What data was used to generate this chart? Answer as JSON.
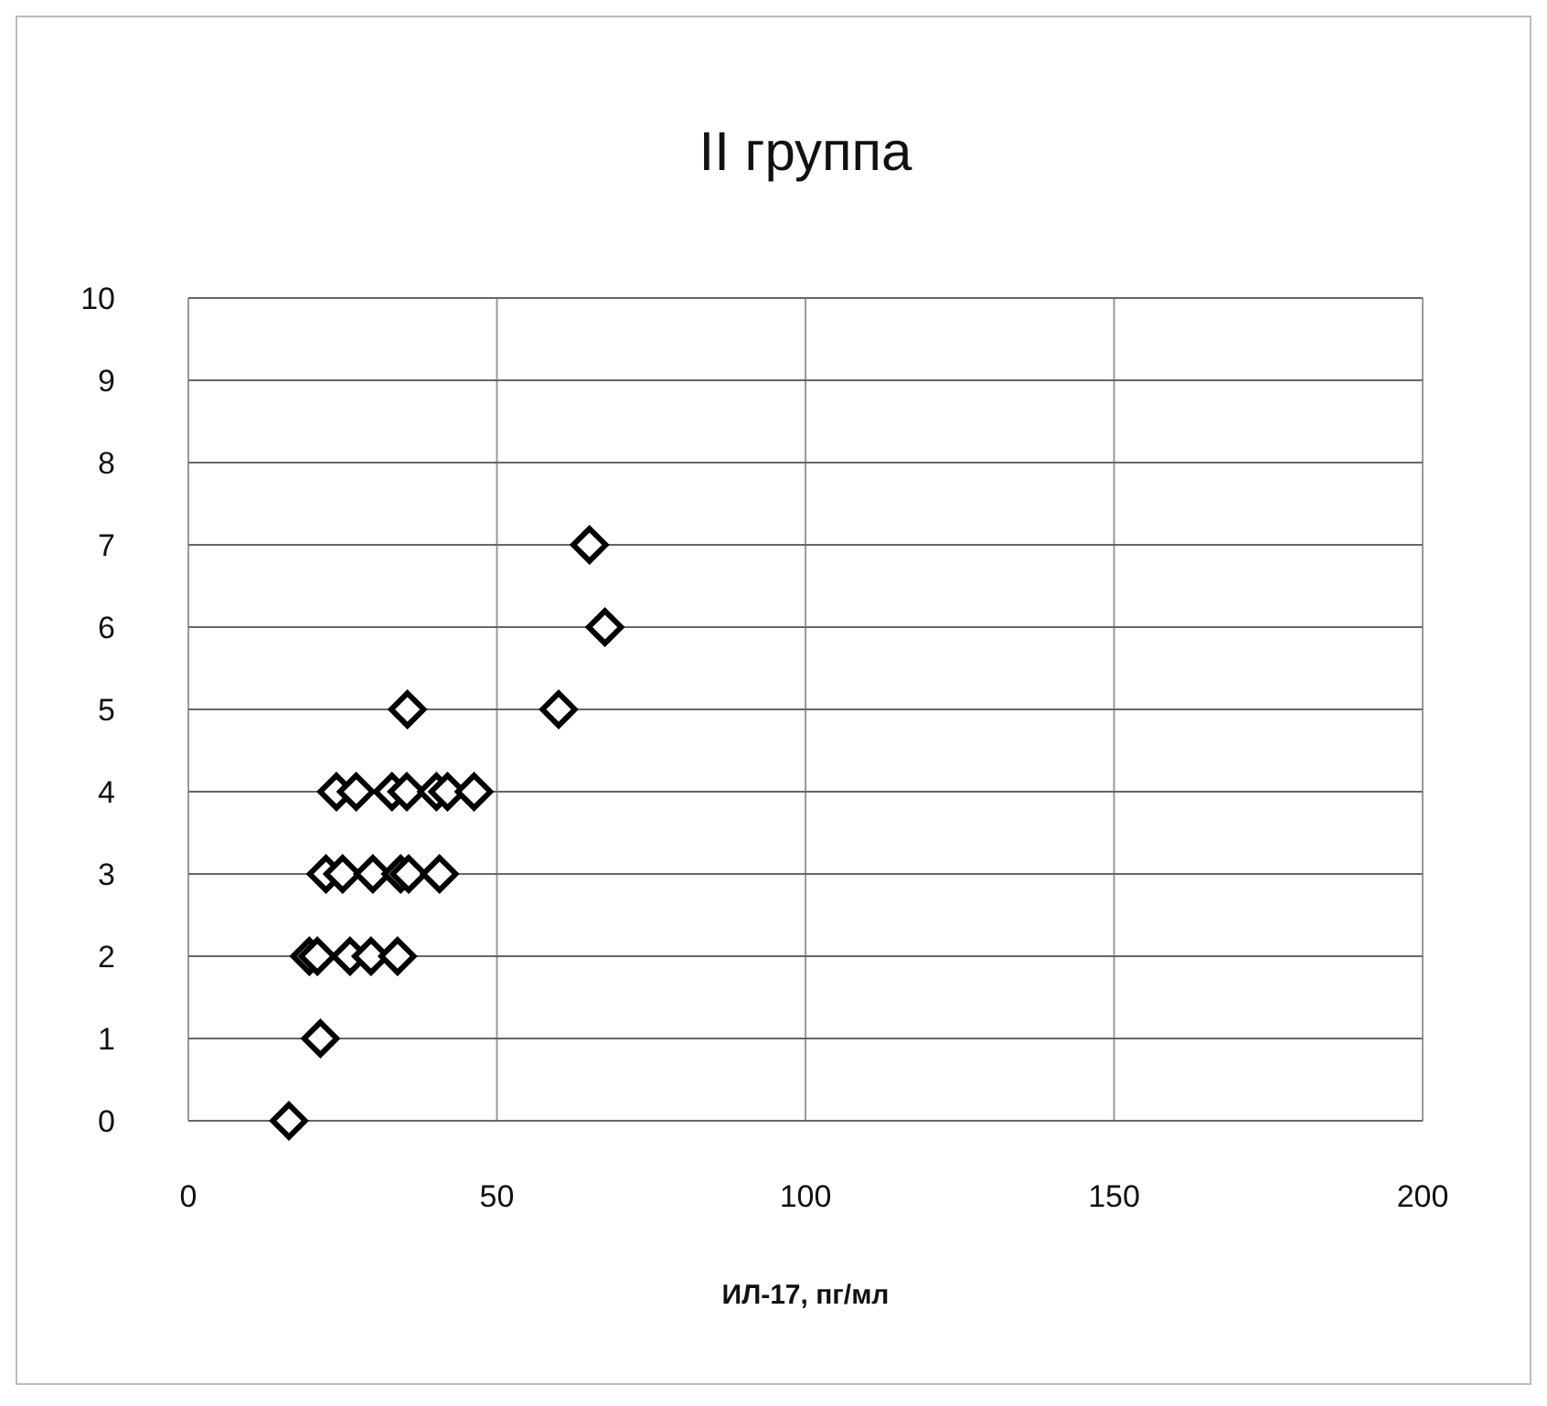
{
  "chart_data": {
    "type": "scatter",
    "title": "II группа",
    "xlabel": "ИЛ-17, пг/мл",
    "marker": "diamond",
    "grid": true,
    "xlim": [
      0,
      200
    ],
    "xticks": [
      0,
      50,
      100,
      150,
      200
    ],
    "ylim": [
      0,
      10
    ],
    "yticks": [
      0,
      1,
      2,
      3,
      4,
      5,
      6,
      7,
      8,
      9,
      10
    ],
    "series": [
      {
        "color": "#000000",
        "x": [
          16.3,
          21.4,
          19.6,
          20.9,
          26.2,
          29.6,
          33.9,
          22.3,
          25,
          29.9,
          34.4,
          35.7,
          40.7,
          24,
          27.2,
          33,
          35.4,
          40.2,
          42,
          46.3,
          35.5,
          60,
          67.5,
          65
        ],
        "values": [
          0,
          1,
          2,
          2,
          2,
          2,
          2,
          3,
          3,
          3,
          3,
          3,
          3,
          4,
          4,
          4,
          4,
          4,
          4,
          4,
          5,
          5,
          6,
          7
        ]
      }
    ]
  }
}
